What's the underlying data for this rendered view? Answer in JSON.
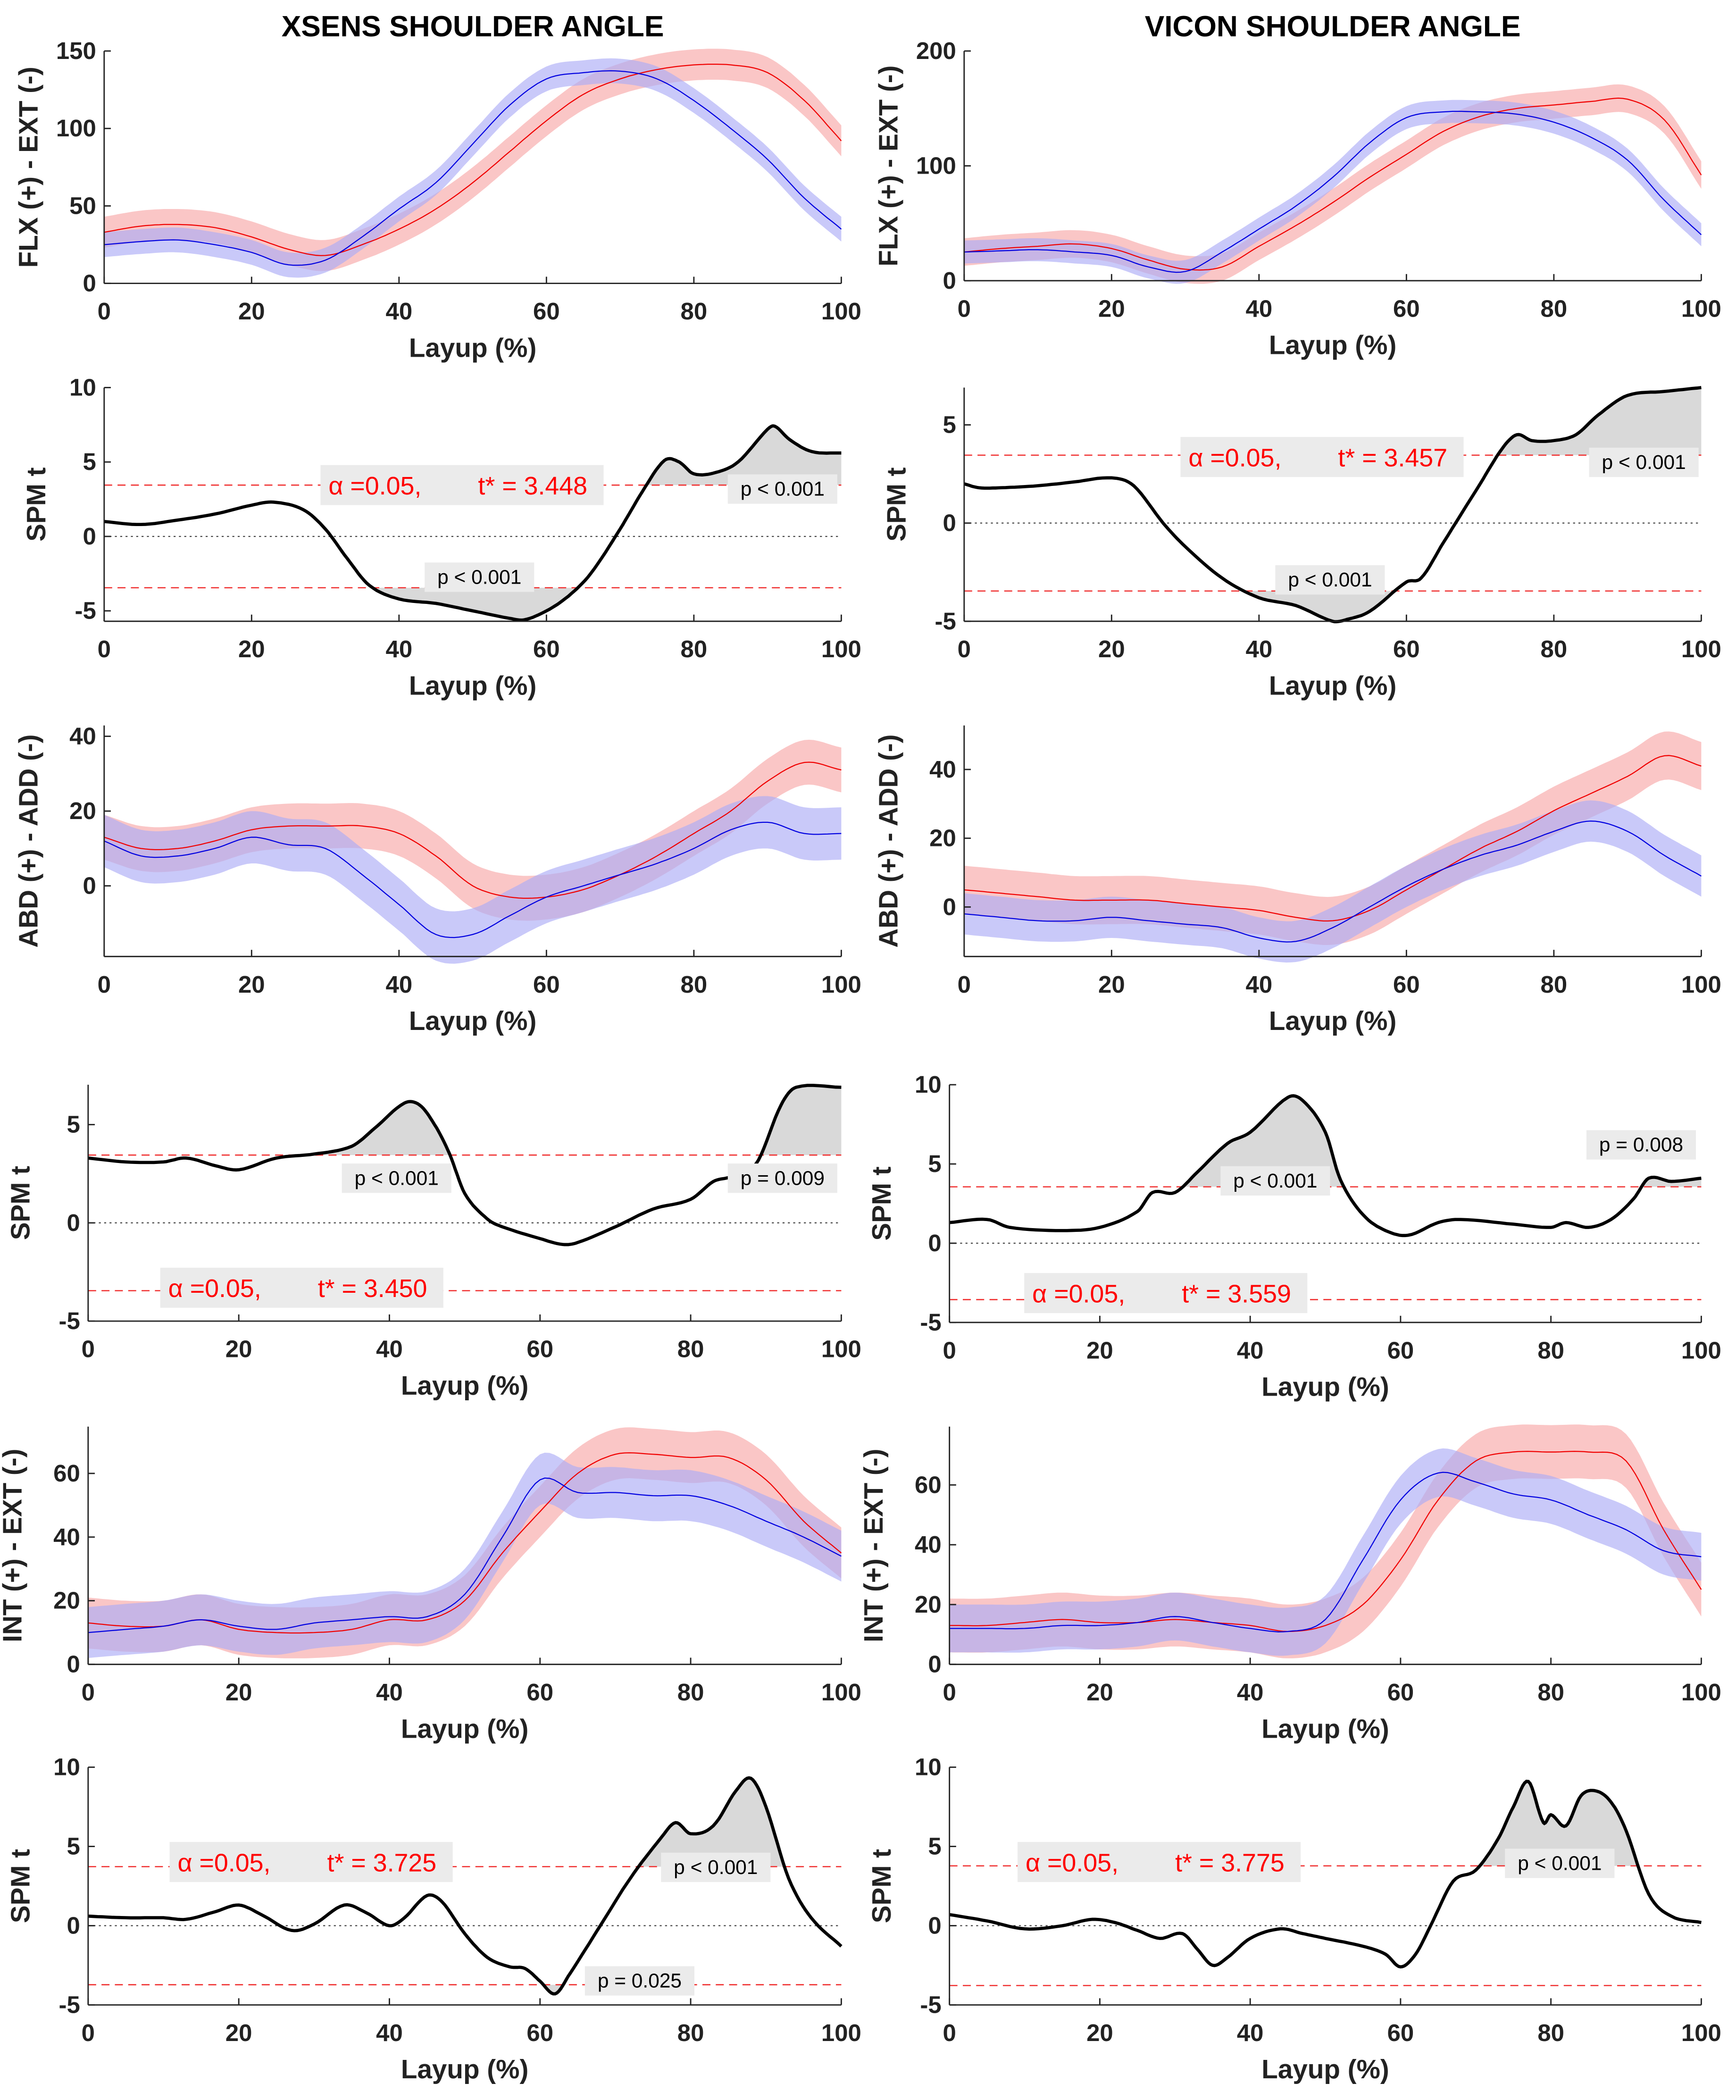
{
  "titles": {
    "left": "XSENS SHOULDER ANGLE",
    "right": "VICON SHOULDER ANGLE"
  },
  "colors": {
    "group_a": "#f00000",
    "group_a_band": "#f7a8a8",
    "group_b": "#0000e0",
    "group_b_band": "#acacf6",
    "cluster": "#d9d9d9",
    "threshold": "#f03030"
  },
  "chart_data": [
    {
      "type": "area",
      "panel": "xsens-flexion",
      "xlabel": "Layup (%)",
      "ylabel": "FLX (+) - EXT (-)",
      "ylim": [
        0,
        150
      ],
      "xlim": [
        0,
        100
      ],
      "x": [
        0,
        5,
        10,
        15,
        20,
        25,
        30,
        35,
        40,
        45,
        50,
        55,
        60,
        65,
        70,
        75,
        80,
        85,
        90,
        95,
        100
      ],
      "series": [
        {
          "name": "red",
          "mean": [
            33,
            37,
            38,
            36,
            30,
            22,
            18,
            25,
            35,
            48,
            65,
            85,
            105,
            122,
            132,
            138,
            141,
            141,
            136,
            118,
            92
          ],
          "sd": 10
        },
        {
          "name": "blue",
          "mean": [
            25,
            27,
            28,
            25,
            20,
            12,
            15,
            30,
            48,
            65,
            90,
            115,
            132,
            136,
            137,
            132,
            118,
            100,
            80,
            55,
            35
          ],
          "sd": 8
        }
      ]
    },
    {
      "type": "area",
      "panel": "vicon-flexion",
      "xlabel": "Layup (%)",
      "ylabel": "FLX (+) - EXT (-)",
      "ylim": [
        0,
        200
      ],
      "xlim": [
        0,
        100
      ],
      "x": [
        0,
        5,
        10,
        15,
        20,
        25,
        30,
        35,
        40,
        45,
        50,
        55,
        60,
        65,
        70,
        75,
        80,
        85,
        90,
        95,
        100
      ],
      "series": [
        {
          "name": "red",
          "mean": [
            25,
            28,
            30,
            32,
            28,
            18,
            10,
            12,
            30,
            48,
            68,
            90,
            110,
            130,
            143,
            150,
            153,
            156,
            158,
            140,
            92
          ],
          "sd": 12
        },
        {
          "name": "blue",
          "mean": [
            25,
            26,
            27,
            25,
            22,
            12,
            8,
            25,
            45,
            65,
            90,
            120,
            142,
            147,
            147,
            145,
            138,
            125,
            105,
            70,
            40
          ],
          "sd": 10
        }
      ]
    },
    {
      "type": "line",
      "panel": "xsens-flexion-spm",
      "xlabel": "Layup (%)",
      "ylabel": "SPM t",
      "ylim": [
        -5.7,
        10
      ],
      "xlim": [
        0,
        100
      ],
      "x": [
        0,
        5,
        10,
        15,
        20,
        23,
        27,
        30,
        33,
        36,
        40,
        45,
        50,
        55,
        57,
        60,
        63,
        66,
        70,
        73,
        76,
        78,
        80,
        83,
        86,
        90,
        91,
        93,
        96,
        100
      ],
      "values": [
        1,
        0.8,
        1.1,
        1.5,
        2.1,
        2.3,
        1.8,
        0.5,
        -1.5,
        -3.3,
        -4.2,
        -4.5,
        -5,
        -5.5,
        -5.6,
        -5,
        -4,
        -2.5,
        0.5,
        3,
        5.1,
        5,
        4.2,
        4.3,
        5,
        7.2,
        7.4,
        6.5,
        5.7,
        5.6
      ],
      "alpha_label": "α  =0.05,",
      "tstar": 3.448,
      "tstar_label": "t* = 3.448",
      "clusters": [
        "p < 0.001",
        "p < 0.001"
      ]
    },
    {
      "type": "line",
      "panel": "vicon-flexion-spm",
      "xlabel": "Layup (%)",
      "ylabel": "SPM t",
      "ylim": [
        -5,
        6.9
      ],
      "xlim": [
        0,
        100
      ],
      "x": [
        0,
        2,
        5,
        10,
        15,
        20,
        23,
        27,
        30,
        35,
        40,
        45,
        50,
        52,
        55,
        60,
        62,
        65,
        70,
        73,
        75,
        77,
        80,
        83,
        86,
        90,
        95,
        100
      ],
      "values": [
        2,
        1.8,
        1.8,
        1.9,
        2.1,
        2.3,
        1.9,
        0,
        -1.2,
        -2.8,
        -3.8,
        -4.2,
        -5,
        -4.9,
        -4.5,
        -3,
        -2.8,
        -1,
        2,
        3.8,
        4.5,
        4.2,
        4.2,
        4.5,
        5.5,
        6.5,
        6.7,
        6.9
      ],
      "alpha_label": "α  =0.05,",
      "tstar": 3.457,
      "tstar_label": "t* = 3.457",
      "clusters": [
        "p < 0.001",
        "p < 0.001"
      ]
    },
    {
      "type": "area",
      "panel": "xsens-abduction",
      "xlabel": "Layup (%)",
      "ylabel": "ABD (+) - ADD (-)",
      "ylim": [
        -18.9,
        42.9
      ],
      "xlim": [
        0,
        100
      ],
      "x": [
        0,
        5,
        10,
        15,
        20,
        25,
        30,
        35,
        40,
        45,
        50,
        55,
        60,
        65,
        70,
        75,
        80,
        85,
        90,
        95,
        100
      ],
      "series": [
        {
          "name": "red",
          "mean": [
            13,
            10,
            10,
            12,
            15,
            16,
            16,
            16,
            14,
            8,
            0,
            -3,
            -3,
            -1,
            3,
            8,
            14,
            20,
            28,
            33,
            31
          ],
          "sd": 6
        },
        {
          "name": "blue",
          "mean": [
            12,
            8,
            8,
            10,
            13,
            11,
            10,
            3,
            -5,
            -13,
            -13,
            -8,
            -3,
            0,
            3,
            6,
            10,
            15,
            17,
            14,
            14
          ],
          "sd": 7
        }
      ]
    },
    {
      "type": "area",
      "panel": "vicon-abduction",
      "xlabel": "Layup (%)",
      "ylabel": "ABD (+) - ADD (-)",
      "ylim": [
        -14.4,
        52.8
      ],
      "xlim": [
        0,
        100
      ],
      "x": [
        0,
        5,
        10,
        15,
        20,
        25,
        30,
        35,
        40,
        45,
        50,
        55,
        60,
        65,
        70,
        75,
        80,
        85,
        90,
        95,
        100
      ],
      "series": [
        {
          "name": "red",
          "mean": [
            5,
            4,
            3,
            2,
            2,
            2,
            1,
            0,
            -1,
            -3,
            -4,
            -1,
            5,
            11,
            17,
            22,
            28,
            33,
            38,
            44,
            41
          ],
          "sd": 7
        },
        {
          "name": "blue",
          "mean": [
            -2,
            -3,
            -4,
            -4,
            -3,
            -4,
            -5,
            -6,
            -9,
            -10,
            -6,
            0,
            6,
            11,
            15,
            18,
            22,
            25,
            22,
            15,
            9
          ],
          "sd": 6
        }
      ]
    },
    {
      "type": "line",
      "panel": "xsens-abduction-spm",
      "xlabel": "Layup (%)",
      "ylabel": "SPM t",
      "ylim": [
        -5,
        7.03
      ],
      "xlim": [
        0,
        100
      ],
      "x": [
        0,
        5,
        10,
        13,
        17,
        20,
        25,
        30,
        35,
        38,
        42,
        44,
        46,
        48,
        50,
        53,
        55,
        60,
        63,
        65,
        70,
        75,
        80,
        83,
        85,
        87,
        89,
        92,
        94,
        100
      ],
      "values": [
        3.3,
        3.1,
        3.1,
        3.3,
        2.9,
        2.7,
        3.3,
        3.5,
        3.9,
        4.8,
        6.1,
        6,
        5,
        3.5,
        1.5,
        0.2,
        -0.2,
        -0.8,
        -1.1,
        -1,
        -0.2,
        0.7,
        1.2,
        2.1,
        2.3,
        2.5,
        3.2,
        6,
        6.9,
        6.9
      ],
      "alpha_label": "α  =0.05,",
      "tstar": 3.45,
      "tstar_label": "t* = 3.450",
      "clusters": [
        "p < 0.001",
        "p = 0.009"
      ]
    },
    {
      "type": "line",
      "panel": "vicon-abduction-spm",
      "xlabel": "Layup (%)",
      "ylabel": "SPM t",
      "ylim": [
        -5,
        10
      ],
      "xlim": [
        0,
        100
      ],
      "x": [
        0,
        5,
        8,
        15,
        20,
        25,
        27,
        30,
        33,
        37,
        40,
        45,
        47,
        50,
        52,
        55,
        58,
        61,
        65,
        68,
        75,
        80,
        82,
        85,
        88,
        91,
        93,
        96,
        100
      ],
      "values": [
        1.3,
        1.5,
        1,
        0.8,
        1,
        2,
        3.2,
        3.2,
        4.5,
        6.3,
        7,
        9.2,
        9,
        7,
        4,
        1.8,
        0.8,
        0.5,
        1.3,
        1.5,
        1.2,
        1,
        1.3,
        1,
        1.5,
        2.8,
        4.1,
        3.9,
        4.1
      ],
      "alpha_label": "α  =0.05,",
      "tstar": 3.559,
      "tstar_label": "t* = 3.559",
      "clusters": [
        "p < 0.001",
        "p = 0.008"
      ]
    },
    {
      "type": "area",
      "panel": "xsens-rotation",
      "xlabel": "Layup (%)",
      "ylabel": "INT (+) - EXT (-)",
      "ylim": [
        0,
        74.7
      ],
      "xlim": [
        0,
        100
      ],
      "x": [
        0,
        5,
        10,
        15,
        20,
        25,
        30,
        35,
        40,
        45,
        50,
        55,
        60,
        65,
        70,
        75,
        80,
        85,
        90,
        95,
        100
      ],
      "series": [
        {
          "name": "red",
          "mean": [
            13,
            12,
            12,
            14,
            11,
            10,
            10,
            11,
            14,
            14,
            20,
            35,
            48,
            60,
            66,
            66,
            65,
            65,
            58,
            45,
            35
          ],
          "sd": 8
        },
        {
          "name": "blue",
          "mean": [
            10,
            11,
            12,
            14,
            12,
            11,
            13,
            14,
            15,
            15,
            22,
            40,
            58,
            54,
            54,
            53,
            53,
            50,
            45,
            40,
            34
          ],
          "sd": 8
        }
      ]
    },
    {
      "type": "area",
      "panel": "vicon-rotation",
      "xlabel": "Layup (%)",
      "ylabel": "INT (+) - EXT (-)",
      "ylim": [
        0,
        79.5
      ],
      "xlim": [
        0,
        100
      ],
      "x": [
        0,
        5,
        10,
        15,
        20,
        25,
        30,
        35,
        40,
        45,
        50,
        55,
        60,
        65,
        70,
        75,
        80,
        85,
        90,
        95,
        100
      ],
      "series": [
        {
          "name": "red",
          "mean": [
            13,
            13,
            14,
            15,
            14,
            14,
            15,
            14,
            13,
            11,
            13,
            20,
            35,
            55,
            68,
            71,
            71,
            71,
            68,
            45,
            25
          ],
          "sd": 9
        },
        {
          "name": "blue",
          "mean": [
            12,
            12,
            12,
            13,
            13,
            14,
            16,
            14,
            12,
            11,
            15,
            35,
            55,
            64,
            61,
            57,
            55,
            50,
            45,
            38,
            36
          ],
          "sd": 8
        }
      ]
    },
    {
      "type": "line",
      "panel": "xsens-rotation-spm",
      "xlabel": "Layup (%)",
      "ylabel": "SPM t",
      "ylim": [
        -5,
        10
      ],
      "xlim": [
        0,
        100
      ],
      "x": [
        0,
        5,
        10,
        13,
        17,
        20,
        23,
        27,
        30,
        34,
        37,
        40,
        42,
        45,
        47,
        50,
        53,
        56,
        58,
        60,
        62,
        64,
        68,
        72,
        76,
        78,
        80,
        83,
        86,
        88,
        90,
        93,
        96,
        100
      ],
      "values": [
        0.6,
        0.5,
        0.5,
        0.4,
        0.9,
        1.3,
        0.7,
        -0.3,
        0.1,
        1.3,
        0.8,
        0,
        0.5,
        1.9,
        1.5,
        -0.5,
        -2,
        -2.6,
        -2.7,
        -3.5,
        -4.3,
        -3,
        0,
        3,
        5.5,
        6.5,
        5.8,
        6.3,
        8.5,
        9.3,
        7.5,
        3,
        0.5,
        -1.3
      ],
      "alpha_label": "α  =0.05,",
      "tstar": 3.725,
      "tstar_label": "t* = 3.725",
      "clusters": [
        "p < 0.001",
        "p = 0.025"
      ]
    },
    {
      "type": "line",
      "panel": "vicon-rotation-spm",
      "xlabel": "Layup (%)",
      "ylabel": "SPM t",
      "ylim": [
        -5,
        10
      ],
      "xlim": [
        0,
        100
      ],
      "x": [
        0,
        5,
        10,
        15,
        19,
        22,
        25,
        28,
        31,
        33,
        35,
        37,
        40,
        44,
        47,
        50,
        55,
        58,
        60,
        62,
        64,
        67,
        70,
        73,
        75,
        77,
        79,
        80,
        82,
        84,
        86,
        88,
        90,
        93,
        96,
        100
      ],
      "values": [
        0.7,
        0.3,
        -0.2,
        0,
        0.4,
        0.2,
        -0.3,
        -0.8,
        -0.5,
        -1.5,
        -2.5,
        -2,
        -0.8,
        -0.2,
        -0.5,
        -0.8,
        -1.3,
        -1.8,
        -2.6,
        -1.8,
        0,
        2.8,
        3.5,
        5.5,
        7.5,
        9.1,
        6.5,
        7,
        6.3,
        8.2,
        8.5,
        7.8,
        6,
        2,
        0.6,
        0.2
      ],
      "alpha_label": "α  =0.05,",
      "tstar": 3.775,
      "tstar_label": "t* = 3.775",
      "clusters": [
        "p < 0.001"
      ]
    }
  ]
}
